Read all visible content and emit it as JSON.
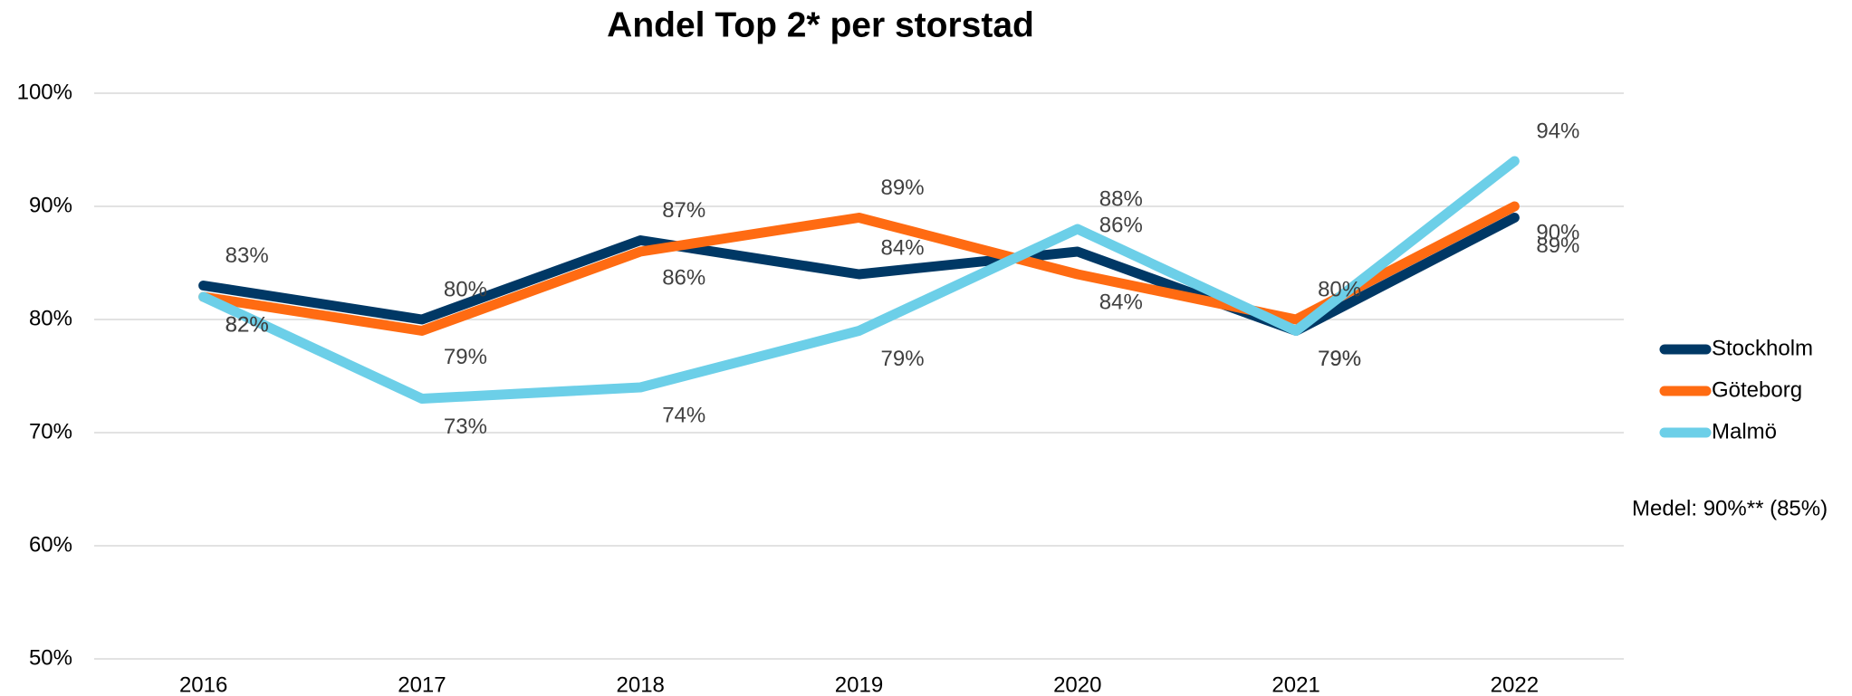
{
  "chart_data": {
    "type": "line",
    "title": "Andel Top 2* per storstad",
    "categories": [
      "2016",
      "2017",
      "2018",
      "2019",
      "2020",
      "2021",
      "2022"
    ],
    "series": [
      {
        "name": "Stockholm",
        "color": "#003865",
        "values": [
          83,
          80,
          87,
          84,
          86,
          79,
          89
        ],
        "value_labels": [
          "83%",
          "80%",
          "87%",
          "84%",
          "86%",
          "79%",
          "89%"
        ]
      },
      {
        "name": "Göteborg",
        "color": "#ff6b12",
        "values": [
          82,
          79,
          86,
          89,
          84,
          80,
          90
        ],
        "value_labels": [
          "82%",
          "79%",
          "86%",
          "89%",
          "84%",
          "80%",
          "90%"
        ]
      },
      {
        "name": "Malmö",
        "color": "#6ccfe8",
        "values": [
          82,
          73,
          74,
          79,
          88,
          79,
          94
        ],
        "value_labels": [
          "82%",
          "73%",
          "74%",
          "79%",
          "88%",
          "79%",
          "94%"
        ]
      }
    ],
    "ylim": [
      50,
      100
    ],
    "yticks": [
      {
        "value": 50,
        "label": "50%"
      },
      {
        "value": 60,
        "label": "60%"
      },
      {
        "value": 70,
        "label": "70%"
      },
      {
        "value": 80,
        "label": "80%"
      },
      {
        "value": 90,
        "label": "90%"
      },
      {
        "value": 100,
        "label": "100%"
      }
    ],
    "grid": true,
    "legend": "right",
    "annotation": "Medel: 90%** (85%)"
  }
}
